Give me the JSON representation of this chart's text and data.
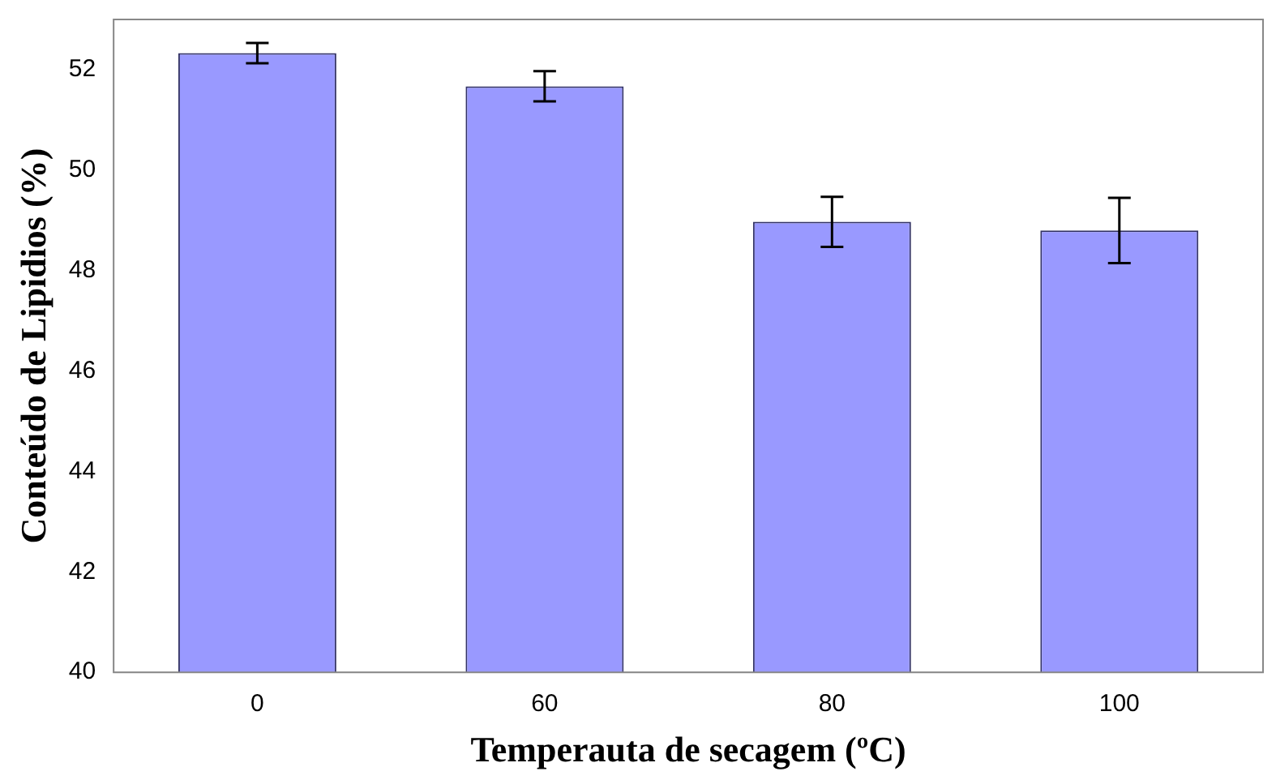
{
  "chart_data": {
    "type": "bar",
    "xlabel": "Temperauta de secagem (ºC)",
    "ylabel": "Conteúdo de Lipidios (%)",
    "categories": [
      "0",
      "60",
      "80",
      "100"
    ],
    "series": [
      {
        "color": "#9999ff",
        "values": [
          52.33,
          51.67,
          48.97,
          48.8
        ],
        "errors": [
          0.2,
          0.3,
          0.5,
          0.65
        ]
      }
    ],
    "ylim": [
      40,
      53
    ],
    "yticks": [
      40,
      42,
      44,
      46,
      48,
      50,
      52
    ],
    "grid": false,
    "legend": false
  }
}
